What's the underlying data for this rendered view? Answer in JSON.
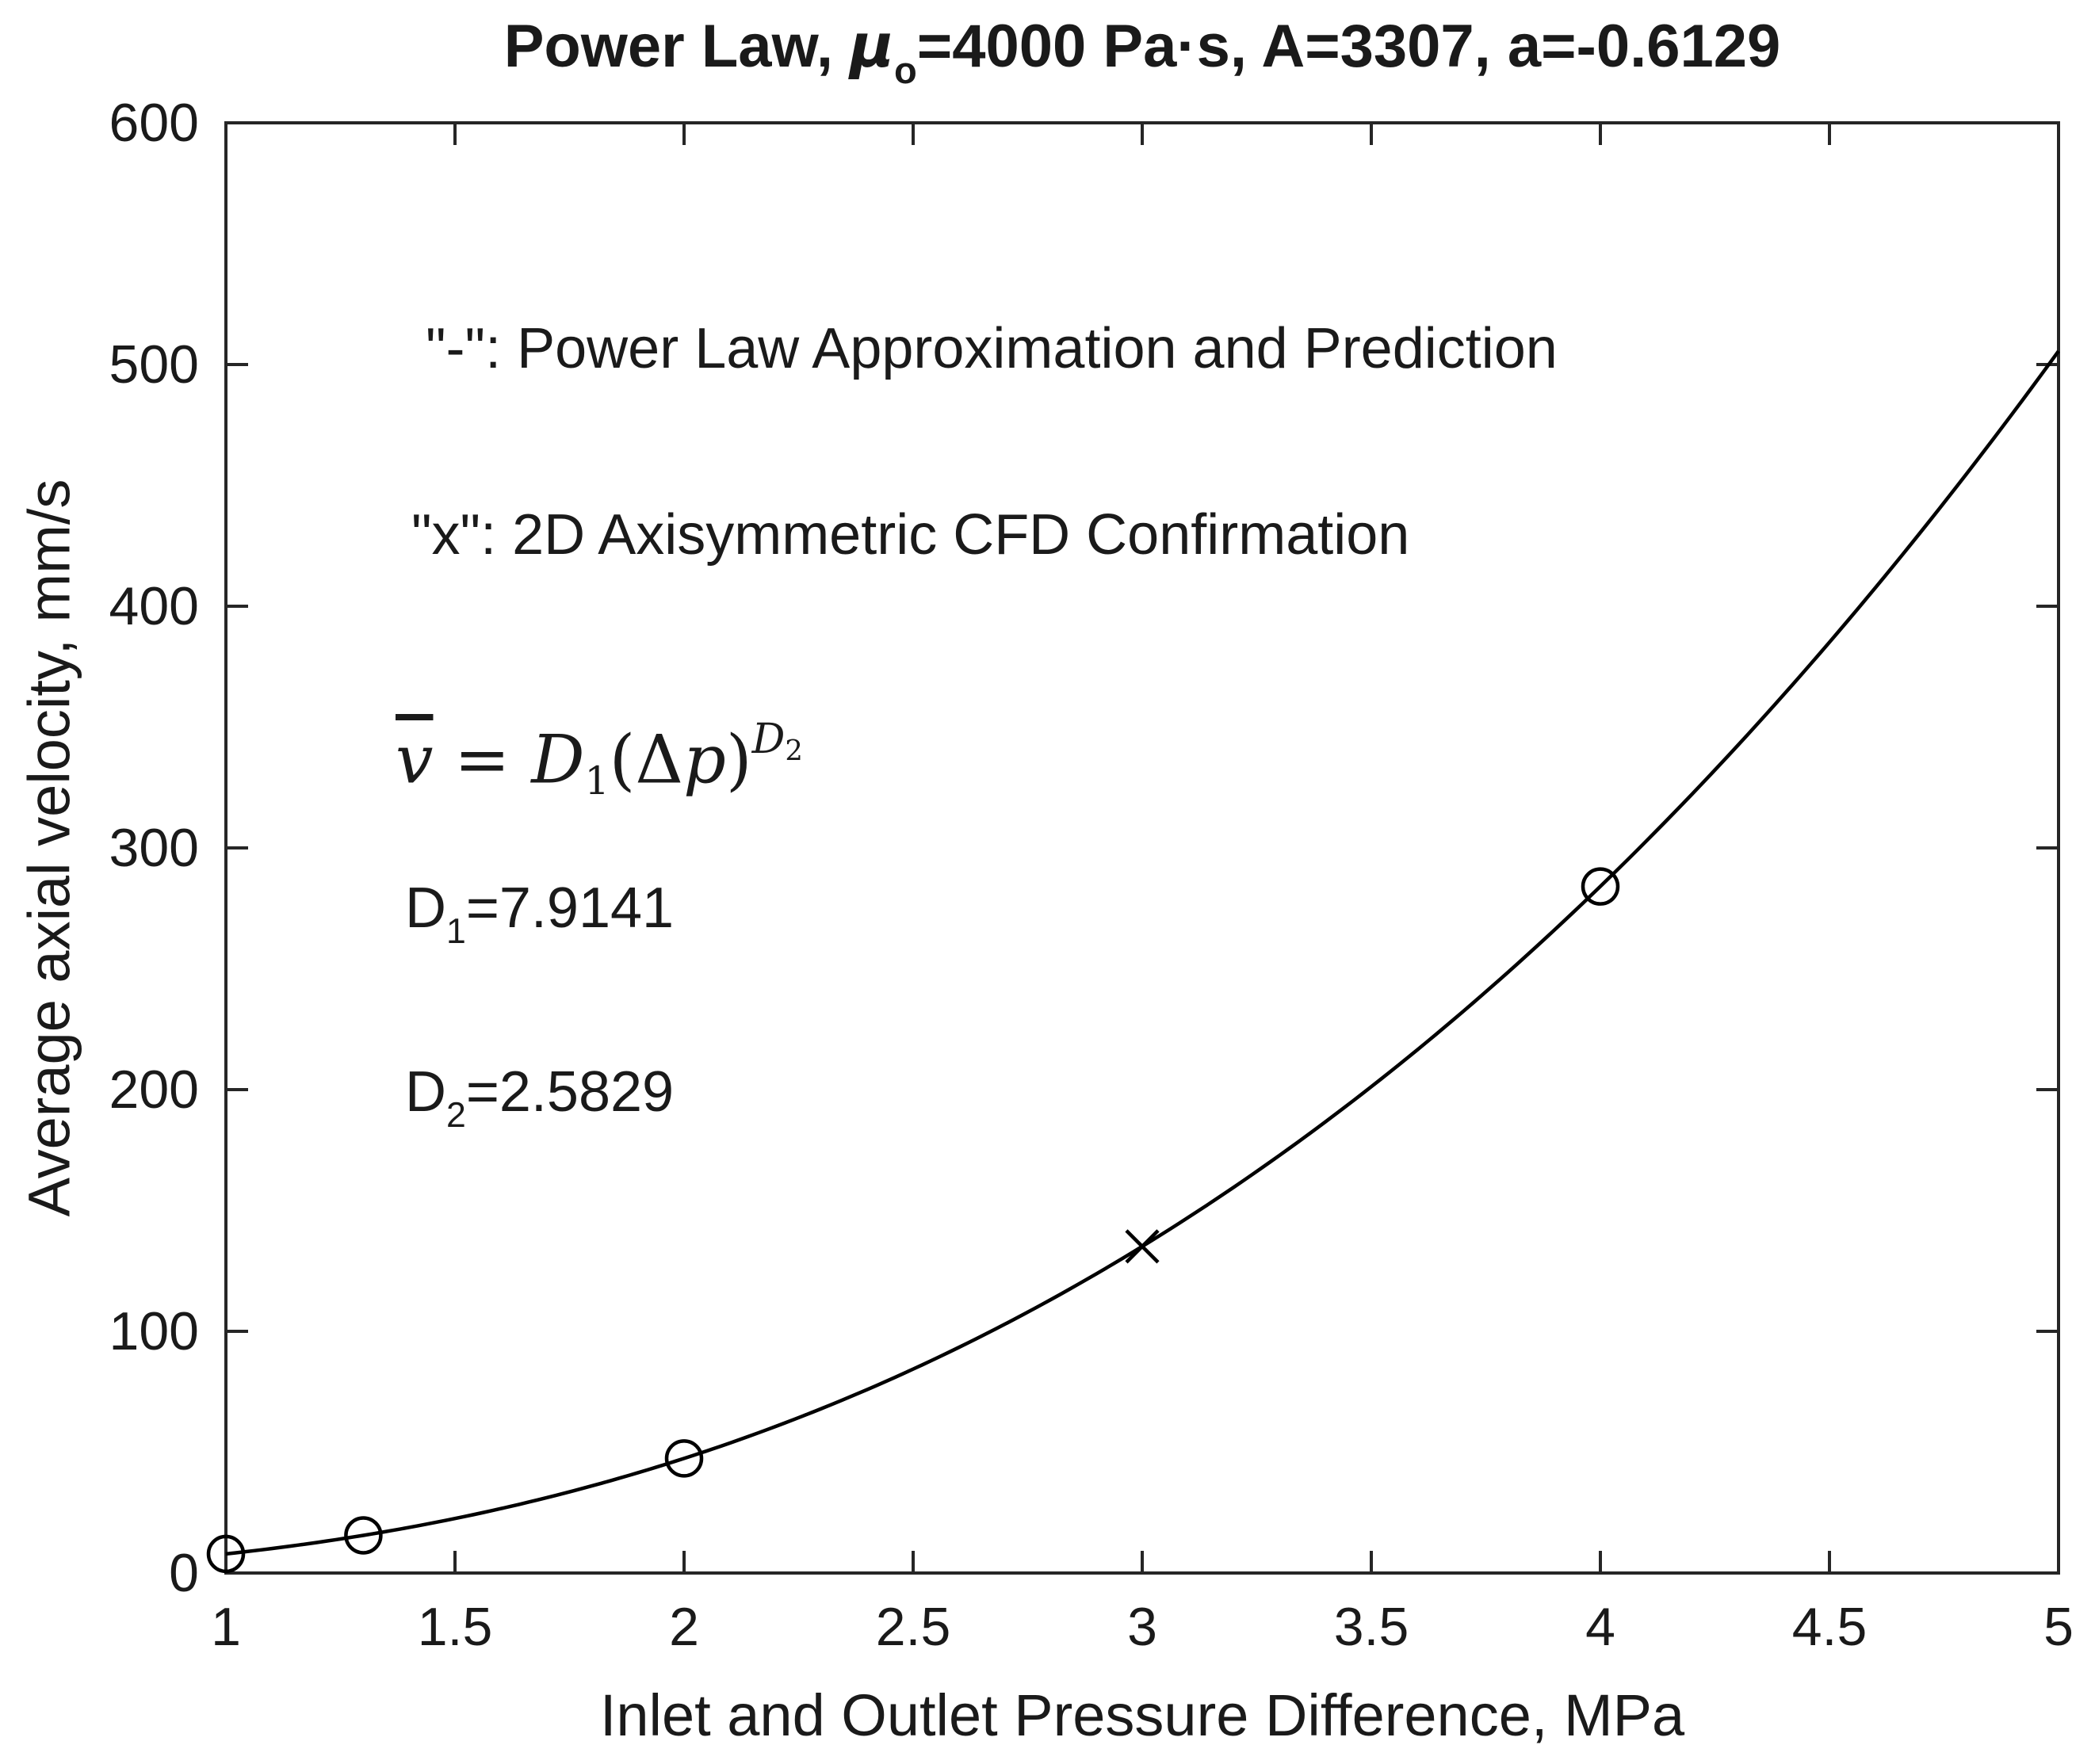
{
  "title": {
    "part1": "Power Law, ",
    "mu": "μ",
    "mu_sub": "o",
    "part2": "=4000 Pa·s, A=3307, a=-0.6129"
  },
  "annotations": {
    "line_legend": "\"-\": Power Law Approximation and Prediction",
    "marker_legend": "\"x\": 2D Axisymmetric CFD Confirmation"
  },
  "equation": {
    "v": "v",
    "eq": " = ",
    "d": "D",
    "d1_sub": "1",
    "lparen": "(",
    "delta": "Δ",
    "p": "p",
    "rparen": ")",
    "d2_sub": "2"
  },
  "params": {
    "d_base": "D",
    "d1_sub": "1",
    "d1_value": "=7.9141",
    "d2_sub": "2",
    "d2_value": "=2.5829"
  },
  "colors": {
    "curve": "#000000",
    "marker": "#000000",
    "axis_box": "#262626",
    "text": "#1a1a1a",
    "background": "#ffffff"
  },
  "chart_data": {
    "type": "line",
    "title": "Power Law, μ_o=4000 Pa·s, A=3307, a=-0.6129",
    "xlabel": "Inlet and Outlet Pressure Difference, MPa",
    "ylabel": "Average axial velocity, mm/s",
    "xlim": [
      1,
      5
    ],
    "ylim": [
      0,
      600
    ],
    "x_ticks": [
      1,
      1.5,
      2,
      2.5,
      3,
      3.5,
      4,
      4.5,
      5
    ],
    "x_tick_labels": [
      "1",
      "1.5",
      "2",
      "2.5",
      "3",
      "3.5",
      "4",
      "4.5",
      "5"
    ],
    "y_ticks": [
      0,
      100,
      200,
      300,
      400,
      500,
      600
    ],
    "y_tick_labels": [
      "0",
      "100",
      "200",
      "300",
      "400",
      "500",
      "600"
    ],
    "grid": false,
    "legend_position": "text annotations inside plot, upper left",
    "model": {
      "form": "v = D1*(dp)^D2",
      "D1": 7.9141,
      "D2": 2.5829
    },
    "series": [
      {
        "name": "Power Law Approximation and Prediction",
        "style": "solid line",
        "marker": "none",
        "x": [
          1,
          1.5,
          2,
          2.5,
          3,
          3.5,
          4,
          4.5,
          5
        ],
        "y": [
          7.91,
          22.55,
          47.41,
          84.38,
          135.12,
          201.23,
          284.04,
          385.13,
          505.48
        ]
      },
      {
        "name": "Power law fit sample points",
        "style": "markers only",
        "marker": "circle",
        "x": [
          1,
          1.3,
          2,
          4
        ],
        "y": [
          7.91,
          15.59,
          47.41,
          284.04
        ]
      },
      {
        "name": "2D Axisymmetric CFD Confirmation",
        "style": "markers only",
        "marker": "x",
        "x": [
          3
        ],
        "y": [
          135.12
        ]
      }
    ]
  }
}
